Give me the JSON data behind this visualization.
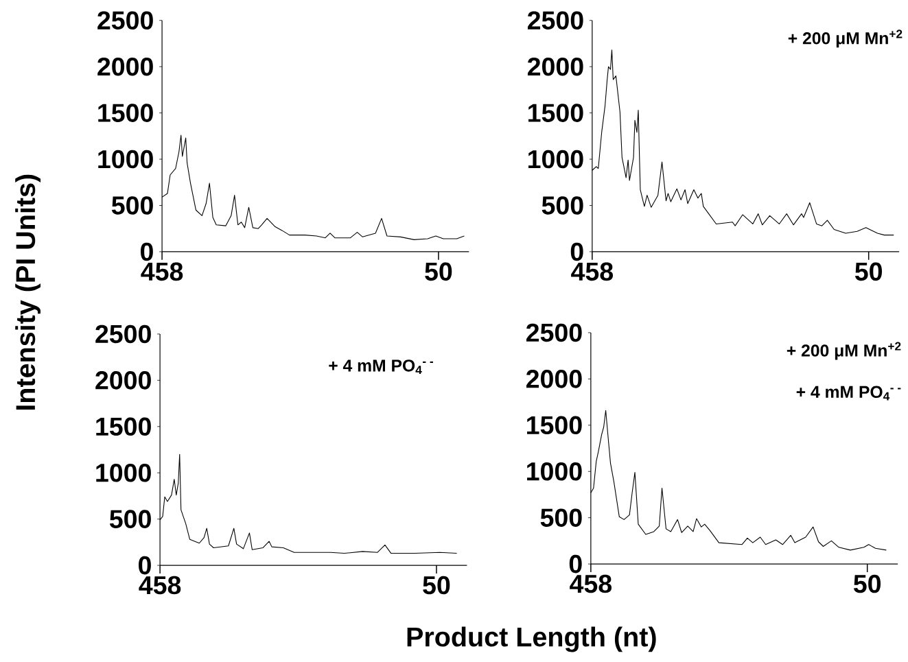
{
  "chart_data": [
    {
      "type": "line",
      "color": "#000000",
      "xlim": [
        458,
        5
      ],
      "xticks": [
        458,
        50
      ],
      "ylim": [
        0,
        2500
      ],
      "yticks": [
        0,
        500,
        1000,
        1500,
        2000,
        2500
      ],
      "ylabel": "Intensity (PI Units)",
      "x": [
        458,
        450,
        446,
        438,
        433,
        430,
        428,
        423,
        421,
        416,
        408,
        399,
        393,
        388,
        383,
        378,
        364,
        356,
        351,
        346,
        341,
        336,
        330,
        324,
        316,
        311,
        303,
        291,
        281,
        270,
        247,
        230,
        217,
        210,
        203,
        180,
        170,
        162,
        143,
        134,
        126,
        106,
        86,
        66,
        54,
        43,
        23,
        12
      ],
      "values": [
        590,
        630,
        830,
        900,
        1080,
        1260,
        1030,
        1230,
        960,
        740,
        450,
        390,
        520,
        740,
        370,
        290,
        280,
        390,
        610,
        290,
        320,
        260,
        480,
        260,
        250,
        290,
        360,
        270,
        230,
        180,
        180,
        170,
        150,
        200,
        150,
        150,
        210,
        160,
        200,
        360,
        170,
        160,
        130,
        140,
        170,
        140,
        140,
        170
      ]
    },
    {
      "type": "line",
      "color": "#000000",
      "xlim": [
        458,
        5
      ],
      "xticks": [
        458,
        50
      ],
      "ylim": [
        0,
        2500
      ],
      "yticks": [
        0,
        500,
        1000,
        1500,
        2000,
        2500
      ],
      "annotations": [
        "+ 200 μM Mn$^{+2}$"
      ],
      "x": [
        458,
        452,
        449,
        444,
        439,
        436,
        434,
        431,
        429,
        427,
        423,
        417,
        414,
        408,
        405,
        403,
        397,
        395,
        392,
        390,
        387,
        381,
        377,
        371,
        361,
        355,
        349,
        346,
        342,
        333,
        327,
        321,
        317,
        308,
        302,
        297,
        294,
        286,
        275,
        251,
        247,
        236,
        221,
        213,
        207,
        196,
        182,
        171,
        161,
        149,
        146,
        137,
        127,
        119,
        111,
        101,
        84,
        67,
        54,
        37,
        27,
        13
      ],
      "values": [
        880,
        920,
        900,
        1290,
        1580,
        1850,
        2000,
        1970,
        2180,
        1860,
        1900,
        1510,
        1020,
        800,
        990,
        770,
        1020,
        1420,
        1290,
        1530,
        670,
        490,
        610,
        480,
        610,
        970,
        550,
        630,
        540,
        680,
        560,
        670,
        520,
        670,
        580,
        630,
        490,
        410,
        300,
        320,
        280,
        400,
        300,
        410,
        290,
        390,
        300,
        410,
        290,
        410,
        370,
        530,
        300,
        280,
        340,
        240,
        200,
        220,
        260,
        200,
        180,
        180
      ]
    },
    {
      "type": "line",
      "color": "#000000",
      "xlim": [
        458,
        5
      ],
      "xticks": [
        458,
        50
      ],
      "ylim": [
        0,
        2500
      ],
      "yticks": [
        0,
        500,
        1000,
        1500,
        2000,
        2500
      ],
      "xlabel": "Product Length (nt)",
      "annotations": [
        "+ 4 mM PO$_{4}$$^{- -}$"
      ],
      "x": [
        458,
        454,
        451,
        447,
        441,
        437,
        434,
        431,
        429,
        427,
        420,
        414,
        400,
        393,
        389,
        385,
        379,
        357,
        349,
        345,
        335,
        326,
        322,
        306,
        297,
        293,
        276,
        260,
        206,
        186,
        159,
        137,
        126,
        117,
        82,
        45,
        20
      ],
      "values": [
        490,
        530,
        740,
        690,
        760,
        930,
        760,
        890,
        1200,
        600,
        450,
        280,
        240,
        300,
        400,
        230,
        190,
        210,
        400,
        230,
        180,
        350,
        170,
        190,
        260,
        200,
        190,
        140,
        140,
        130,
        150,
        140,
        220,
        130,
        130,
        140,
        130
      ]
    },
    {
      "type": "line",
      "color": "#000000",
      "xlim": [
        458,
        5
      ],
      "xticks": [
        458,
        50
      ],
      "ylim": [
        0,
        2500
      ],
      "yticks": [
        0,
        500,
        1000,
        1500,
        2000,
        2500
      ],
      "annotations": [
        "+ 200 μM Mn$^{+2}$",
        "+ 4 mM PO$_{4}$$^{- -}$"
      ],
      "x": [
        458,
        454,
        450,
        447,
        442,
        439,
        436,
        432,
        429,
        424,
        416,
        409,
        401,
        397,
        393,
        388,
        377,
        365,
        357,
        353,
        347,
        340,
        330,
        324,
        315,
        307,
        302,
        295,
        290,
        282,
        269,
        235,
        227,
        219,
        208,
        200,
        185,
        175,
        163,
        157,
        141,
        130,
        122,
        115,
        103,
        92,
        75,
        55,
        48,
        38,
        22
      ],
      "values": [
        770,
        820,
        1110,
        1210,
        1400,
        1480,
        1660,
        1330,
        1090,
        890,
        510,
        480,
        530,
        770,
        990,
        430,
        320,
        350,
        410,
        820,
        380,
        350,
        480,
        340,
        410,
        350,
        490,
        400,
        430,
        360,
        230,
        210,
        280,
        230,
        290,
        210,
        260,
        210,
        310,
        230,
        290,
        400,
        240,
        190,
        250,
        180,
        150,
        180,
        210,
        170,
        150
      ]
    }
  ]
}
